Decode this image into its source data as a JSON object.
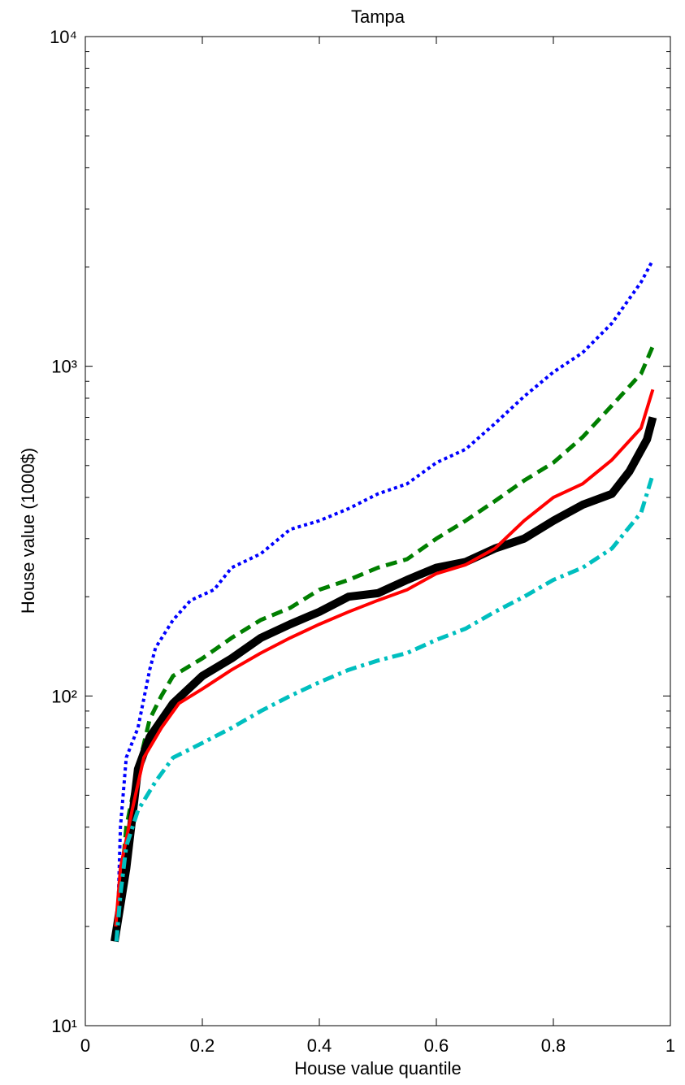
{
  "chart_data": {
    "type": "line",
    "title": "Tampa",
    "xlabel": "House value quantile",
    "ylabel": "House value (1000$)",
    "xlim": [
      0,
      1
    ],
    "xticks": [
      0,
      0.2,
      0.4,
      0.6,
      0.8,
      1
    ],
    "ylim": [
      10,
      10000
    ],
    "log_y": true,
    "yticks": [
      {
        "value": 10,
        "label": "10¹"
      },
      {
        "value": 100,
        "label": "10²"
      },
      {
        "value": 1000,
        "label": "10³"
      },
      {
        "value": 10000,
        "label": "10⁴"
      }
    ],
    "yminorticks": [
      20,
      30,
      40,
      50,
      60,
      70,
      80,
      90,
      200,
      300,
      400,
      500,
      600,
      700,
      800,
      900,
      2000,
      3000,
      4000,
      5000,
      6000,
      7000,
      8000,
      9000
    ],
    "series": [
      {
        "color": "#0000ff",
        "style": "dotted",
        "width": 4,
        "x": [
          0.055,
          0.06,
          0.07,
          0.09,
          0.11,
          0.12,
          0.15,
          0.18,
          0.22,
          0.25,
          0.3,
          0.35,
          0.4,
          0.45,
          0.5,
          0.55,
          0.6,
          0.65,
          0.7,
          0.75,
          0.8,
          0.85,
          0.9,
          0.95,
          0.97
        ],
        "values": [
          20,
          40,
          65,
          80,
          120,
          140,
          170,
          195,
          210,
          245,
          270,
          320,
          340,
          370,
          410,
          440,
          510,
          560,
          670,
          810,
          960,
          1100,
          1350,
          1800,
          2100
        ]
      },
      {
        "color": "#007f00",
        "style": "dashed",
        "width": 5,
        "x": [
          0.055,
          0.07,
          0.09,
          0.11,
          0.13,
          0.15,
          0.2,
          0.25,
          0.3,
          0.35,
          0.4,
          0.45,
          0.5,
          0.55,
          0.6,
          0.65,
          0.7,
          0.75,
          0.8,
          0.85,
          0.9,
          0.95,
          0.97
        ],
        "values": [
          20,
          40,
          60,
          85,
          100,
          115,
          130,
          150,
          170,
          185,
          210,
          225,
          245,
          260,
          300,
          340,
          390,
          450,
          510,
          610,
          760,
          950,
          1150
        ]
      },
      {
        "color": "#000000",
        "style": "solid",
        "width": 10,
        "x": [
          0.05,
          0.07,
          0.09,
          0.11,
          0.15,
          0.2,
          0.25,
          0.3,
          0.35,
          0.4,
          0.45,
          0.5,
          0.55,
          0.6,
          0.65,
          0.7,
          0.75,
          0.8,
          0.85,
          0.9,
          0.93,
          0.96,
          0.97
        ],
        "values": [
          18,
          30,
          60,
          75,
          95,
          115,
          130,
          150,
          165,
          180,
          200,
          205,
          225,
          245,
          255,
          280,
          300,
          340,
          380,
          410,
          480,
          600,
          700
        ]
      },
      {
        "color": "#ff0000",
        "style": "solid",
        "width": 4,
        "x": [
          0.052,
          0.06,
          0.08,
          0.1,
          0.13,
          0.16,
          0.2,
          0.25,
          0.3,
          0.35,
          0.4,
          0.45,
          0.5,
          0.55,
          0.6,
          0.65,
          0.7,
          0.75,
          0.8,
          0.85,
          0.9,
          0.95,
          0.97
        ],
        "values": [
          20,
          30,
          45,
          65,
          80,
          95,
          105,
          120,
          135,
          150,
          165,
          180,
          195,
          210,
          235,
          250,
          280,
          340,
          400,
          440,
          520,
          650,
          850
        ]
      },
      {
        "color": "#00bfbf",
        "style": "dashdot",
        "width": 5,
        "x": [
          0.053,
          0.06,
          0.07,
          0.09,
          0.12,
          0.15,
          0.2,
          0.25,
          0.3,
          0.35,
          0.4,
          0.45,
          0.5,
          0.55,
          0.6,
          0.65,
          0.7,
          0.75,
          0.8,
          0.85,
          0.9,
          0.95,
          0.97
        ],
        "values": [
          18,
          25,
          35,
          45,
          55,
          65,
          72,
          80,
          90,
          100,
          110,
          120,
          128,
          135,
          148,
          160,
          180,
          200,
          225,
          245,
          280,
          360,
          470
        ]
      }
    ]
  }
}
